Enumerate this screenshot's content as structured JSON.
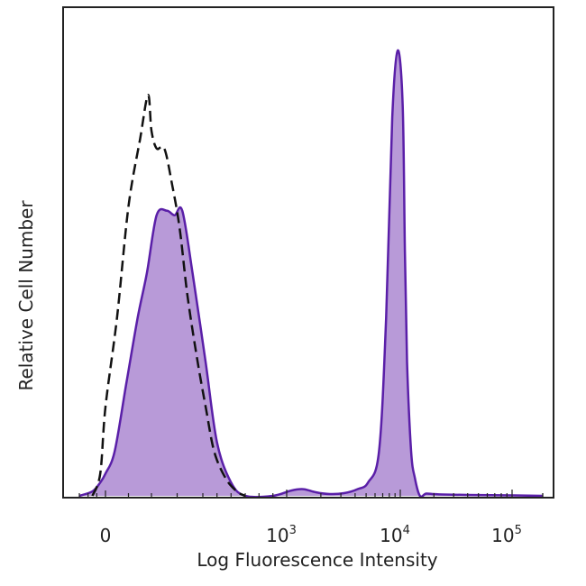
{
  "chart_data": {
    "type": "area",
    "xlabel": "Log Fluorescence Intensity",
    "ylabel": "Relative Cell Number",
    "x_scale": "biexponential",
    "xlim": [
      -300,
      200000
    ],
    "ylim": [
      0,
      1
    ],
    "grid": false,
    "x_ticks": [
      {
        "value": 0,
        "base": "0",
        "exp": ""
      },
      {
        "value": 1000,
        "base": "10",
        "exp": "3"
      },
      {
        "value": 10000,
        "base": "10",
        "exp": "4"
      },
      {
        "value": 100000,
        "base": "10",
        "exp": "5"
      }
    ],
    "series": [
      {
        "style": "filled",
        "fill_color": "#b89ad8",
        "line_color": "#5a1fa8",
        "x": [
          -300,
          -150,
          -60,
          0,
          40,
          90,
          140,
          180,
          220,
          260,
          290,
          320,
          360,
          420,
          500,
          600,
          700,
          900,
          1100,
          1400,
          1800,
          2400,
          3200,
          4200,
          5200,
          6500,
          7500,
          8500,
          9500,
          10500,
          11000,
          11500,
          12500,
          13500,
          15000,
          17000,
          20000,
          24000,
          40000,
          100000,
          200000
        ],
        "y": [
          0,
          0.01,
          0.03,
          0.05,
          0.1,
          0.25,
          0.4,
          0.5,
          0.63,
          0.64,
          0.63,
          0.64,
          0.5,
          0.3,
          0.12,
          0.03,
          0.0,
          0.0,
          0.012,
          0.015,
          0.008,
          0.004,
          0.006,
          0.015,
          0.03,
          0.1,
          0.4,
          0.85,
          1.0,
          0.88,
          0.55,
          0.3,
          0.1,
          0.04,
          0.0,
          0.005,
          0.004,
          0.003,
          0.002,
          0.001,
          0.0
        ]
      },
      {
        "style": "dashed",
        "line_color": "#111111",
        "x": [
          -150,
          -60,
          0,
          50,
          100,
          150,
          185,
          200,
          220,
          250,
          280,
          310,
          340,
          380,
          420,
          480,
          560,
          640,
          700
        ],
        "y": [
          0,
          0.05,
          0.2,
          0.4,
          0.65,
          0.8,
          0.9,
          0.82,
          0.78,
          0.78,
          0.7,
          0.6,
          0.45,
          0.3,
          0.2,
          0.1,
          0.04,
          0.01,
          0
        ]
      }
    ]
  }
}
